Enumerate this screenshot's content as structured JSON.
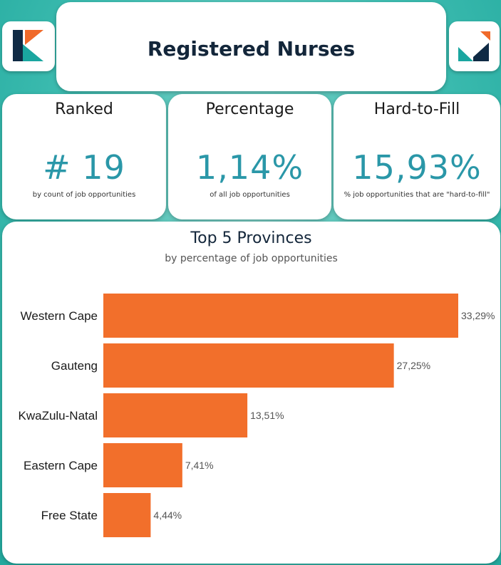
{
  "header": {
    "title": "Registered Nurses"
  },
  "logo": {
    "colors": {
      "teal": "#1aa6a0",
      "navy": "#0f2a44",
      "orange": "#f06a2a"
    }
  },
  "kpis": {
    "ranked": {
      "heading": "Ranked",
      "value": "# 19",
      "caption": "by count of job opportunities"
    },
    "percentage": {
      "heading": "Percentage",
      "value": "1,14%",
      "caption": "of all job opportunities"
    },
    "hard_to_fill": {
      "heading": "Hard-to-Fill",
      "value": "15,93%",
      "caption": "% job opportunities that are \"hard-to-fill\""
    }
  },
  "chart_data": {
    "type": "bar",
    "orientation": "horizontal",
    "title": "Top 5 Provinces",
    "subtitle": "by percentage of job opportunities",
    "categories": [
      "Western Cape",
      "Gauteng",
      "KwaZulu-Natal",
      "Eastern Cape",
      "Free State"
    ],
    "values": [
      33.29,
      27.25,
      13.51,
      7.41,
      4.44
    ],
    "labels": [
      "33,29%",
      "27,25%",
      "13,51%",
      "7,41%",
      "4,44%"
    ],
    "xlim": [
      0,
      33.29
    ],
    "grid": false,
    "bar_color": "#f26f2b"
  }
}
